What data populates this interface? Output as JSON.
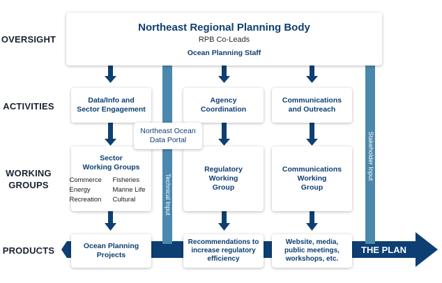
{
  "row_labels": {
    "oversight": "OVERSIGHT",
    "activities": "ACTIVITIES",
    "working_groups_line1": "WORKING",
    "working_groups_line2": "GROUPS",
    "products": "PRODUCTS"
  },
  "oversight": {
    "title": "Northeast Regional Planning Body",
    "subtitle": "RPB Co-Leads",
    "staff": "Ocean Planning Staff"
  },
  "activities": {
    "data_info_line1": "Data/Info and",
    "data_info_line2": "Sector Engagement",
    "agency_line1": "Agency",
    "agency_line2": "Coordination",
    "communications_line1": "Communications",
    "communications_line2": "and Outreach"
  },
  "data_portal": {
    "line1": "Northeast Ocean",
    "line2": "Data Portal"
  },
  "working_groups": {
    "sector_line1": "Sector",
    "sector_line2": "Working Groups",
    "sectors": [
      "Commerce",
      "Fisheries",
      "Energy",
      "Marine Life",
      "Recreation",
      "Cultural"
    ],
    "regulatory_line1": "Regulatory",
    "regulatory_line2": "Working",
    "regulatory_line3": "Group",
    "communications_line1": "Communications",
    "communications_line2": "Working",
    "communications_line3": "Group"
  },
  "products": {
    "ocean_line1": "Ocean Planning",
    "ocean_line2": "Projects",
    "recommendations_line1": "Recommendations to",
    "recommendations_line2": "increase regulatory",
    "recommendations_line3": "efficiency",
    "website_line1": "Website, media,",
    "website_line2": "public meetings,",
    "website_line3": "workshops, etc.",
    "plan": "THE PLAN"
  },
  "inputs": {
    "technical": "Technical Input",
    "stakeholder": "Stakeholder Input"
  },
  "colors": {
    "navy": "#0d3f72",
    "steel_blue": "#4b88ad",
    "label_dark": "#1a2130"
  }
}
